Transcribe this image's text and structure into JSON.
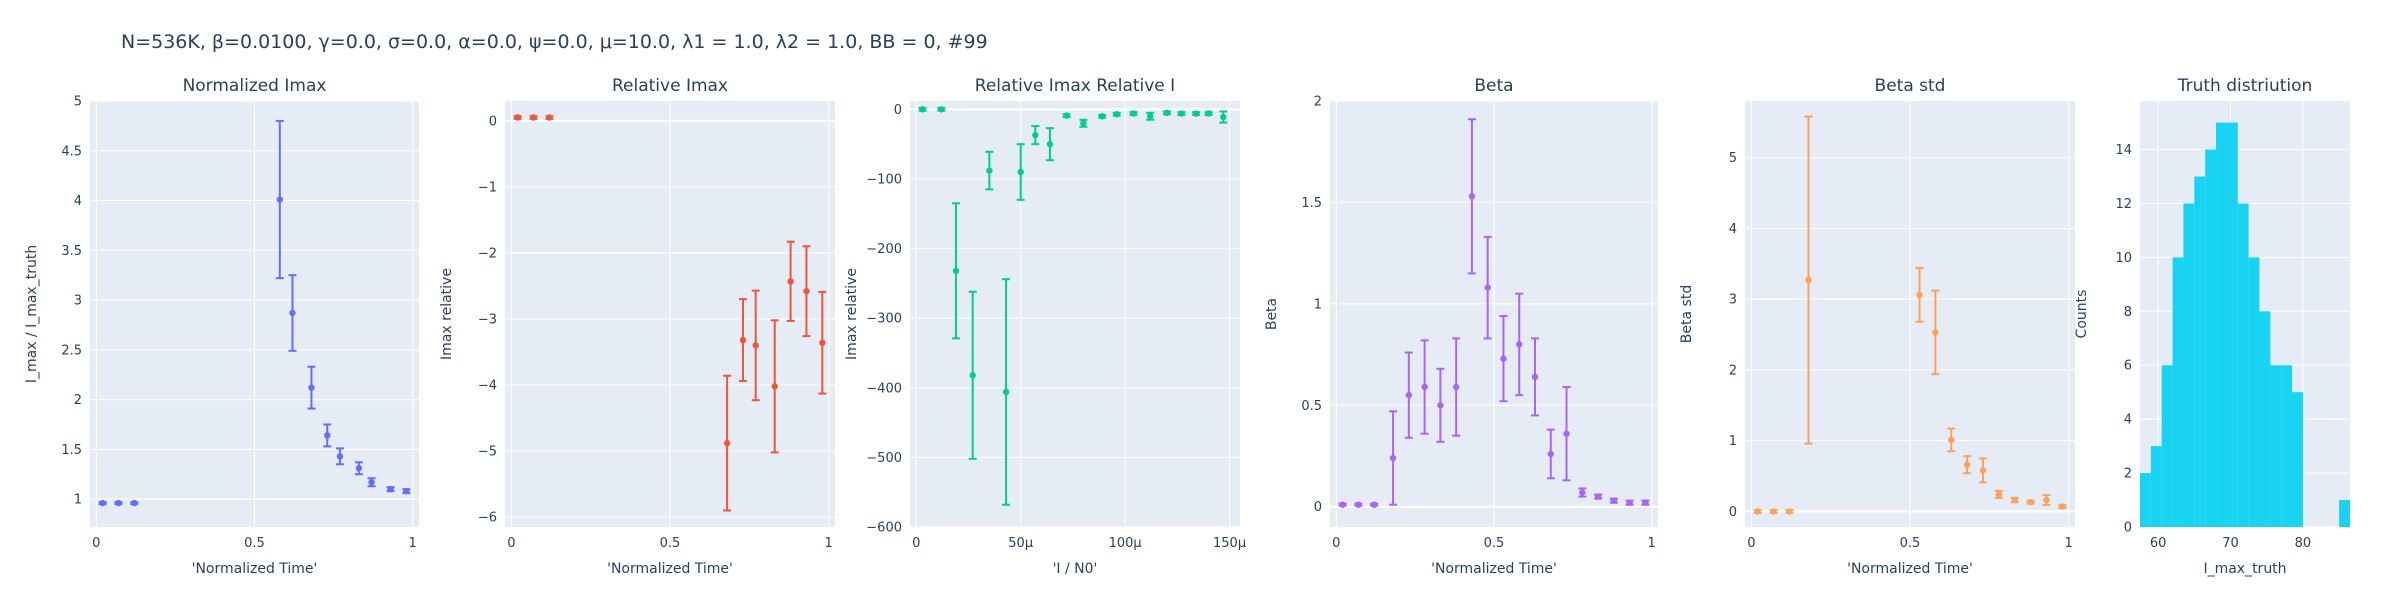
{
  "page_title": "N=536K, β=0.0100, γ=0.0, σ=0.0,  α=0.0, ψ=0.0, μ=10.0, λ1 = 1.0, λ2 = 1.0, BB = 0, #99",
  "colors": {
    "plot_bg": "#e5ecf6",
    "grid": "#ffffff",
    "text": "#2a3f5f"
  },
  "chart_data": [
    {
      "type": "scatter",
      "title": "Normalized Imax",
      "xlabel": "'Normalized Time'",
      "ylabel": "I_max / I_max_truth",
      "color": "#636efa",
      "xlim": [
        -0.02,
        1.02
      ],
      "ylim": [
        0.72,
        5.0
      ],
      "xticks": [
        0,
        0.5,
        1
      ],
      "xtick_labels": [
        "0",
        "0.5",
        "1"
      ],
      "yticks": [
        1,
        1.5,
        2,
        2.5,
        3,
        3.5,
        4,
        4.5,
        5
      ],
      "ytick_labels": [
        "1",
        "1.5",
        "2",
        "2.5",
        "3",
        "3.5",
        "4",
        "4.5",
        "5"
      ],
      "points": [
        {
          "x": 0.02,
          "y": 0.96,
          "err": 0.01
        },
        {
          "x": 0.07,
          "y": 0.96,
          "err": 0.01
        },
        {
          "x": 0.12,
          "y": 0.96,
          "err": 0.01
        },
        {
          "x": 0.58,
          "y": 4.01,
          "err": 0.79
        },
        {
          "x": 0.62,
          "y": 2.87,
          "err": 0.38
        },
        {
          "x": 0.68,
          "y": 2.12,
          "err": 0.21
        },
        {
          "x": 0.73,
          "y": 1.64,
          "err": 0.11
        },
        {
          "x": 0.77,
          "y": 1.43,
          "err": 0.08
        },
        {
          "x": 0.83,
          "y": 1.31,
          "err": 0.06
        },
        {
          "x": 0.87,
          "y": 1.17,
          "err": 0.04
        },
        {
          "x": 0.93,
          "y": 1.1,
          "err": 0.02
        },
        {
          "x": 0.98,
          "y": 1.08,
          "err": 0.02
        }
      ]
    },
    {
      "type": "scatter",
      "title": "Relative Imax",
      "xlabel": "'Normalized Time'",
      "ylabel": "Imax relative",
      "color": "#ef553b",
      "xlim": [
        -0.02,
        1.02
      ],
      "ylim": [
        -6.15,
        0.3
      ],
      "xticks": [
        0,
        0.5,
        1
      ],
      "xtick_labels": [
        "0",
        "0.5",
        "1"
      ],
      "yticks": [
        0,
        -1,
        -2,
        -3,
        -4,
        -5,
        -6
      ],
      "ytick_labels": [
        "0",
        "−1",
        "−2",
        "−3",
        "−4",
        "−5",
        "−6"
      ],
      "points": [
        {
          "x": 0.02,
          "y": 0.05,
          "err": 0.02
        },
        {
          "x": 0.07,
          "y": 0.05,
          "err": 0.02
        },
        {
          "x": 0.12,
          "y": 0.05,
          "err": 0.02
        },
        {
          "x": 0.68,
          "y": -4.88,
          "err": 1.02
        },
        {
          "x": 0.73,
          "y": -3.32,
          "err": 0.62
        },
        {
          "x": 0.77,
          "y": -3.4,
          "err": 0.83
        },
        {
          "x": 0.83,
          "y": -4.02,
          "err": 1.0
        },
        {
          "x": 0.88,
          "y": -2.43,
          "err": 0.6
        },
        {
          "x": 0.93,
          "y": -2.58,
          "err": 0.68
        },
        {
          "x": 0.98,
          "y": -3.36,
          "err": 0.77
        }
      ]
    },
    {
      "type": "scatter",
      "title": "Relative Imax Relative I",
      "xlabel": "'I / N0'",
      "ylabel": "Imax relative",
      "color": "#00cc96",
      "xlim": [
        -3e-06,
        0.000155
      ],
      "ylim": [
        -600,
        12
      ],
      "xticks": [
        0,
        5e-05,
        0.0001,
        0.00015
      ],
      "xtick_labels": [
        "0",
        "50μ",
        "100μ",
        "150μ"
      ],
      "yticks": [
        0,
        -100,
        -200,
        -300,
        -400,
        -500,
        -600
      ],
      "ytick_labels": [
        "0",
        "−100",
        "−200",
        "−300",
        "−400",
        "−500",
        "−600"
      ],
      "points": [
        {
          "x": 3e-06,
          "y": 0,
          "err": 2
        },
        {
          "x": 1.2e-05,
          "y": 0,
          "err": 2
        },
        {
          "x": 1.9e-05,
          "y": -232,
          "err": 97
        },
        {
          "x": 2.7e-05,
          "y": -382,
          "err": 120
        },
        {
          "x": 3.5e-05,
          "y": -88,
          "err": 27
        },
        {
          "x": 4.3e-05,
          "y": -406,
          "err": 162
        },
        {
          "x": 5e-05,
          "y": -90,
          "err": 40
        },
        {
          "x": 5.7e-05,
          "y": -37,
          "err": 13
        },
        {
          "x": 6.4e-05,
          "y": -50,
          "err": 23
        },
        {
          "x": 7.2e-05,
          "y": -9,
          "err": 2
        },
        {
          "x": 8e-05,
          "y": -20,
          "err": 5
        },
        {
          "x": 8.9e-05,
          "y": -10,
          "err": 2
        },
        {
          "x": 9.6e-05,
          "y": -7,
          "err": 2
        },
        {
          "x": 0.000104,
          "y": -6,
          "err": 2
        },
        {
          "x": 0.000112,
          "y": -10,
          "err": 5
        },
        {
          "x": 0.00012,
          "y": -5,
          "err": 2
        },
        {
          "x": 0.000127,
          "y": -6,
          "err": 2
        },
        {
          "x": 0.000134,
          "y": -6,
          "err": 2
        },
        {
          "x": 0.00014,
          "y": -6,
          "err": 2
        },
        {
          "x": 0.000147,
          "y": -11,
          "err": 8
        }
      ]
    },
    {
      "type": "scatter",
      "title": "Beta",
      "xlabel": "'Normalized Time'",
      "ylabel": "Beta",
      "color": "#ab63fa",
      "xlim": [
        -0.02,
        1.02
      ],
      "ylim": [
        -0.1,
        2.0
      ],
      "xticks": [
        0,
        0.5,
        1
      ],
      "xtick_labels": [
        "0",
        "0.5",
        "1"
      ],
      "yticks": [
        0,
        0.5,
        1,
        1.5,
        2
      ],
      "ytick_labels": [
        "0",
        "0.5",
        "1",
        "1.5",
        "2"
      ],
      "points": [
        {
          "x": 0.02,
          "y": 0.01,
          "err": 0.005
        },
        {
          "x": 0.07,
          "y": 0.01,
          "err": 0.005
        },
        {
          "x": 0.12,
          "y": 0.01,
          "err": 0.005
        },
        {
          "x": 0.18,
          "y": 0.24,
          "err": 0.23
        },
        {
          "x": 0.23,
          "y": 0.55,
          "err": 0.21
        },
        {
          "x": 0.28,
          "y": 0.59,
          "err": 0.23
        },
        {
          "x": 0.33,
          "y": 0.5,
          "err": 0.18
        },
        {
          "x": 0.38,
          "y": 0.59,
          "err": 0.24
        },
        {
          "x": 0.43,
          "y": 1.53,
          "err": 0.38
        },
        {
          "x": 0.48,
          "y": 1.08,
          "err": 0.25
        },
        {
          "x": 0.53,
          "y": 0.73,
          "err": 0.21
        },
        {
          "x": 0.58,
          "y": 0.8,
          "err": 0.25
        },
        {
          "x": 0.63,
          "y": 0.64,
          "err": 0.19
        },
        {
          "x": 0.68,
          "y": 0.26,
          "err": 0.12
        },
        {
          "x": 0.73,
          "y": 0.36,
          "err": 0.23
        },
        {
          "x": 0.78,
          "y": 0.07,
          "err": 0.02
        },
        {
          "x": 0.83,
          "y": 0.05,
          "err": 0.01
        },
        {
          "x": 0.88,
          "y": 0.03,
          "err": 0.01
        },
        {
          "x": 0.93,
          "y": 0.02,
          "err": 0.01
        },
        {
          "x": 0.98,
          "y": 0.02,
          "err": 0.01
        }
      ]
    },
    {
      "type": "scatter",
      "title": "Beta std",
      "xlabel": "'Normalized Time'",
      "ylabel": "Beta std",
      "color": "#ffa15a",
      "xlim": [
        -0.02,
        1.02
      ],
      "ylim": [
        -0.22,
        5.8
      ],
      "xticks": [
        0,
        0.5,
        1
      ],
      "xtick_labels": [
        "0",
        "0.5",
        "1"
      ],
      "yticks": [
        0,
        1,
        2,
        3,
        4,
        5
      ],
      "ytick_labels": [
        "0",
        "1",
        "2",
        "3",
        "4",
        "5"
      ],
      "points": [
        {
          "x": 0.02,
          "y": 0.0,
          "err": 0.02
        },
        {
          "x": 0.07,
          "y": 0.0,
          "err": 0.02
        },
        {
          "x": 0.12,
          "y": 0.0,
          "err": 0.02
        },
        {
          "x": 0.18,
          "y": 3.27,
          "err": 2.31
        },
        {
          "x": 0.53,
          "y": 3.06,
          "err": 0.38
        },
        {
          "x": 0.58,
          "y": 2.53,
          "err": 0.59
        },
        {
          "x": 0.63,
          "y": 1.01,
          "err": 0.16
        },
        {
          "x": 0.68,
          "y": 0.66,
          "err": 0.12
        },
        {
          "x": 0.73,
          "y": 0.58,
          "err": 0.17
        },
        {
          "x": 0.78,
          "y": 0.24,
          "err": 0.05
        },
        {
          "x": 0.83,
          "y": 0.16,
          "err": 0.03
        },
        {
          "x": 0.88,
          "y": 0.13,
          "err": 0.02
        },
        {
          "x": 0.93,
          "y": 0.16,
          "err": 0.07
        },
        {
          "x": 0.98,
          "y": 0.07,
          "err": 0.02
        }
      ]
    },
    {
      "type": "bar",
      "title": "Truth distriution",
      "xlabel": "I_max_truth",
      "ylabel": "Counts",
      "color": "#19d3f3",
      "xlim": [
        57.5,
        86.5
      ],
      "ylim": [
        0,
        15.8
      ],
      "xticks": [
        60,
        70,
        80
      ],
      "xtick_labels": [
        "60",
        "70",
        "80"
      ],
      "yticks": [
        0,
        2,
        4,
        6,
        8,
        10,
        12,
        14
      ],
      "ytick_labels": [
        "0",
        "2",
        "4",
        "6",
        "8",
        "10",
        "12",
        "14"
      ],
      "bin_width": 1.5,
      "bins": [
        {
          "x0": 57.5,
          "count": 2
        },
        {
          "x0": 59.0,
          "count": 3
        },
        {
          "x0": 60.5,
          "count": 6
        },
        {
          "x0": 62.0,
          "count": 10
        },
        {
          "x0": 63.5,
          "count": 12
        },
        {
          "x0": 65.0,
          "count": 13
        },
        {
          "x0": 66.5,
          "count": 14
        },
        {
          "x0": 68.0,
          "count": 15
        },
        {
          "x0": 69.5,
          "count": 15
        },
        {
          "x0": 71.0,
          "count": 12
        },
        {
          "x0": 72.5,
          "count": 10
        },
        {
          "x0": 74.0,
          "count": 8
        },
        {
          "x0": 75.5,
          "count": 6
        },
        {
          "x0": 77.0,
          "count": 6
        },
        {
          "x0": 78.5,
          "count": 5
        },
        {
          "x0": 85.0,
          "count": 1
        }
      ]
    }
  ]
}
